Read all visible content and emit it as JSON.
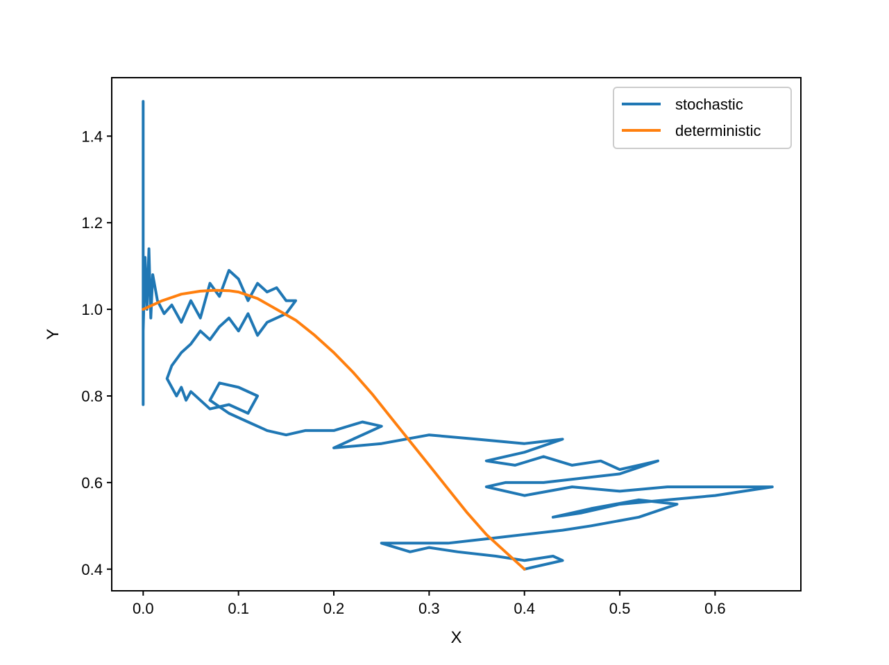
{
  "chart_data": {
    "type": "line",
    "title": "",
    "xlabel": "X",
    "ylabel": "Y",
    "xlim": [
      -0.033,
      0.69
    ],
    "ylim": [
      0.35,
      1.535
    ],
    "xticks": [
      "0.0",
      "0.1",
      "0.2",
      "0.3",
      "0.4",
      "0.5",
      "0.6"
    ],
    "xtick_values": [
      0.0,
      0.1,
      0.2,
      0.3,
      0.4,
      0.5,
      0.6
    ],
    "yticks": [
      "0.4",
      "0.6",
      "0.8",
      "1.0",
      "1.2",
      "1.4"
    ],
    "ytick_values": [
      0.4,
      0.6,
      0.8,
      1.0,
      1.2,
      1.4
    ],
    "grid": false,
    "legend": "top-right",
    "series": [
      {
        "name": "stochastic",
        "color": "#1f77b4",
        "x": [
          0.0,
          0.0,
          0.0,
          0.0,
          0.0,
          0.002,
          0.004,
          0.006,
          0.008,
          0.01,
          0.015,
          0.022,
          0.03,
          0.04,
          0.05,
          0.06,
          0.07,
          0.08,
          0.09,
          0.1,
          0.11,
          0.12,
          0.13,
          0.14,
          0.15,
          0.16,
          0.15,
          0.13,
          0.12,
          0.11,
          0.1,
          0.09,
          0.08,
          0.07,
          0.06,
          0.05,
          0.04,
          0.03,
          0.025,
          0.03,
          0.035,
          0.04,
          0.045,
          0.05,
          0.07,
          0.09,
          0.11,
          0.12,
          0.1,
          0.08,
          0.07,
          0.09,
          0.11,
          0.13,
          0.15,
          0.17,
          0.2,
          0.23,
          0.25,
          0.22,
          0.2,
          0.25,
          0.3,
          0.35,
          0.4,
          0.44,
          0.4,
          0.36,
          0.39,
          0.42,
          0.45,
          0.48,
          0.5,
          0.52,
          0.54,
          0.5,
          0.46,
          0.42,
          0.38,
          0.36,
          0.4,
          0.45,
          0.5,
          0.55,
          0.6,
          0.66,
          0.6,
          0.55,
          0.5,
          0.46,
          0.43,
          0.47,
          0.52,
          0.56,
          0.52,
          0.47,
          0.44,
          0.4,
          0.36,
          0.32,
          0.28,
          0.25,
          0.28,
          0.3,
          0.33,
          0.37,
          0.4,
          0.43,
          0.44,
          0.42,
          0.4
        ],
        "y": [
          0.78,
          1.48,
          0.88,
          1.22,
          0.95,
          1.12,
          1.0,
          1.14,
          0.98,
          1.08,
          1.02,
          0.99,
          1.01,
          0.97,
          1.02,
          0.98,
          1.06,
          1.03,
          1.09,
          1.07,
          1.02,
          1.06,
          1.04,
          1.05,
          1.02,
          1.02,
          0.99,
          0.97,
          0.94,
          0.99,
          0.95,
          0.98,
          0.96,
          0.93,
          0.95,
          0.92,
          0.9,
          0.87,
          0.84,
          0.82,
          0.8,
          0.82,
          0.79,
          0.81,
          0.77,
          0.78,
          0.76,
          0.8,
          0.82,
          0.83,
          0.79,
          0.76,
          0.74,
          0.72,
          0.71,
          0.72,
          0.72,
          0.74,
          0.73,
          0.7,
          0.68,
          0.69,
          0.71,
          0.7,
          0.69,
          0.7,
          0.67,
          0.65,
          0.64,
          0.66,
          0.64,
          0.65,
          0.63,
          0.64,
          0.65,
          0.62,
          0.61,
          0.6,
          0.6,
          0.59,
          0.57,
          0.59,
          0.58,
          0.59,
          0.59,
          0.59,
          0.57,
          0.56,
          0.55,
          0.53,
          0.52,
          0.54,
          0.56,
          0.55,
          0.52,
          0.5,
          0.49,
          0.48,
          0.47,
          0.46,
          0.46,
          0.46,
          0.44,
          0.45,
          0.44,
          0.43,
          0.42,
          0.43,
          0.42,
          0.41,
          0.4
        ]
      },
      {
        "name": "deterministic",
        "color": "#ff7f0e",
        "x": [
          0.0,
          0.02,
          0.04,
          0.06,
          0.075,
          0.09,
          0.1,
          0.12,
          0.14,
          0.16,
          0.18,
          0.2,
          0.22,
          0.24,
          0.26,
          0.28,
          0.3,
          0.32,
          0.34,
          0.36,
          0.38,
          0.4
        ],
        "y": [
          1.0,
          1.02,
          1.035,
          1.042,
          1.044,
          1.043,
          1.04,
          1.025,
          1.0,
          0.975,
          0.94,
          0.9,
          0.855,
          0.805,
          0.75,
          0.695,
          0.64,
          0.585,
          0.53,
          0.48,
          0.44,
          0.4
        ]
      }
    ]
  }
}
